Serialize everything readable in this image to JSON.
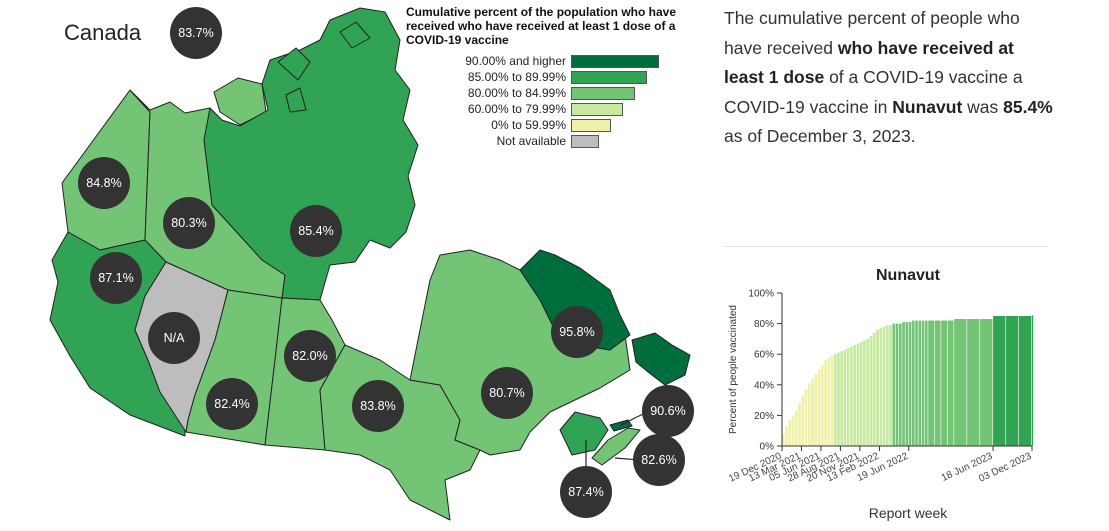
{
  "map": {
    "title": "Canada",
    "provinces": [
      {
        "code": "CA",
        "label": "83.7%"
      },
      {
        "code": "YT",
        "label": "84.8%"
      },
      {
        "code": "NT",
        "label": "80.3%"
      },
      {
        "code": "NU",
        "label": "85.4%"
      },
      {
        "code": "BC",
        "label": "87.1%"
      },
      {
        "code": "AB",
        "label": "N/A"
      },
      {
        "code": "SK",
        "label": "82.4%"
      },
      {
        "code": "MB",
        "label": "82.0%"
      },
      {
        "code": "ON",
        "label": "83.8%"
      },
      {
        "code": "QC",
        "label": "80.7%"
      },
      {
        "code": "NL",
        "label": "95.8%"
      },
      {
        "code": "PE",
        "label": "90.6%"
      },
      {
        "code": "NS",
        "label": "82.6%"
      },
      {
        "code": "NB",
        "label": "87.4%"
      }
    ]
  },
  "legend": {
    "title": "Cumulative percent of the population who have received who have received at least 1 dose of a COVID-19 vaccine",
    "items": [
      {
        "label": "90.00% and higher",
        "color": "#006d3c"
      },
      {
        "label": "85.00% to 89.99%",
        "color": "#31a354"
      },
      {
        "label": "80.00% to 84.99%",
        "color": "#74c476"
      },
      {
        "label": "60.00% to 79.99%",
        "color": "#c7e9a0"
      },
      {
        "label": "0% to 59.99%",
        "color": "#f0f0a8"
      },
      {
        "label": "Not available",
        "color": "#bdbdbd"
      }
    ]
  },
  "description": {
    "p1": "The cumulative percent of people who have received ",
    "b1": "who have received at least 1 dose",
    "p2": " of a COVID-19 vaccine a COVID-19 vaccine in ",
    "b2": "Nunavut",
    "p3": " was ",
    "b3": "85.4%",
    "p4": " as of December 3, 2023."
  },
  "chart_data": {
    "type": "bar",
    "title": "Nunavut",
    "xlabel": "Report week",
    "ylabel": "Percent of people vaccinated",
    "ylim": [
      0,
      100
    ],
    "yticks": [
      "0%",
      "20%",
      "40%",
      "60%",
      "80%",
      "100%"
    ],
    "xticks": [
      "19 Dec 2020",
      "13 Mar 2021",
      "05 Jun 2021",
      "28 Aug 2021",
      "20 Nov 2021",
      "13 Feb 2022",
      "19 Jun 2022",
      "18 Jun 2023",
      "03 Dec 2023"
    ],
    "x_start": "2020-12-19",
    "x_end": "2023-12-03",
    "series": [
      {
        "dates": [
          "2020-12-19",
          "2021-01-02",
          "2021-01-16",
          "2021-01-30",
          "2021-02-13",
          "2021-02-27",
          "2021-03-13",
          "2021-03-27",
          "2021-04-10",
          "2021-04-24",
          "2021-05-08",
          "2021-05-22",
          "2021-06-05",
          "2021-06-19",
          "2021-07-03",
          "2021-07-17",
          "2021-07-31",
          "2021-08-14",
          "2021-08-28",
          "2021-09-11",
          "2021-09-25",
          "2021-10-09",
          "2021-10-23",
          "2021-11-06",
          "2021-11-20",
          "2021-12-04",
          "2021-12-18",
          "2022-01-01",
          "2022-01-15",
          "2022-01-29",
          "2022-02-13",
          "2022-02-27",
          "2022-03-13",
          "2022-03-27",
          "2022-04-10",
          "2022-04-24",
          "2022-05-08",
          "2022-05-22",
          "2022-06-05",
          "2022-06-19",
          "2022-07-03",
          "2022-07-17",
          "2022-07-31",
          "2022-08-14",
          "2022-08-28",
          "2022-09-11",
          "2022-10-09",
          "2022-11-06",
          "2022-12-04",
          "2023-01-01",
          "2023-02-26",
          "2023-04-23",
          "2023-06-18",
          "2023-08-13",
          "2023-10-08",
          "2023-12-03"
        ],
        "values": [
          8,
          13,
          17,
          20,
          23,
          28,
          33,
          37,
          41,
          44,
          47,
          50,
          53,
          56,
          58,
          59,
          60,
          61,
          62,
          63,
          64,
          65,
          66,
          67,
          68,
          69,
          70,
          72,
          74,
          76,
          77,
          78,
          79,
          79,
          80,
          80,
          80,
          81,
          81,
          81,
          82,
          82,
          82,
          82,
          82,
          82,
          82,
          82,
          82,
          83,
          83,
          83,
          85,
          85,
          85,
          85.4
        ]
      }
    ]
  }
}
